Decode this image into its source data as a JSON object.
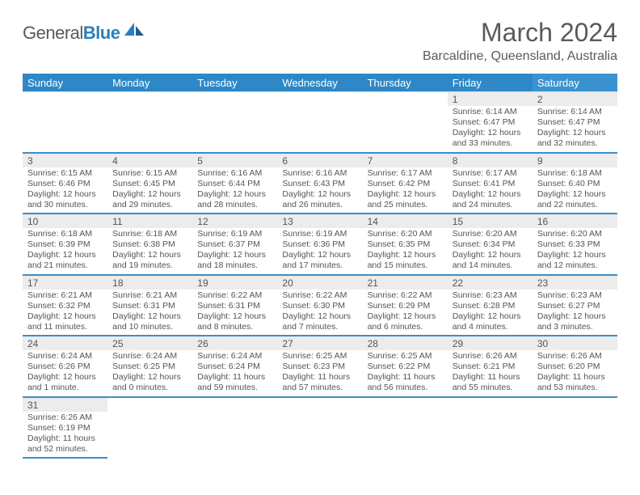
{
  "logo": {
    "first": "General",
    "second": "Blue"
  },
  "title": "March 2024",
  "location": "Barcaldine, Queensland, Australia",
  "colors": {
    "header_bg": "#2e88c7",
    "header_bg_sat": "#3a92d0",
    "divider": "#3a8fc9",
    "daynum_bg": "#ececec",
    "text": "#555555"
  },
  "day_labels": [
    "Sunday",
    "Monday",
    "Tuesday",
    "Wednesday",
    "Thursday",
    "Friday",
    "Saturday"
  ],
  "weeks": [
    [
      null,
      null,
      null,
      null,
      null,
      {
        "n": "1",
        "sr": "6:14 AM",
        "ss": "6:47 PM",
        "dl": "12 hours and 33 minutes."
      },
      {
        "n": "2",
        "sr": "6:14 AM",
        "ss": "6:47 PM",
        "dl": "12 hours and 32 minutes."
      }
    ],
    [
      {
        "n": "3",
        "sr": "6:15 AM",
        "ss": "6:46 PM",
        "dl": "12 hours and 30 minutes."
      },
      {
        "n": "4",
        "sr": "6:15 AM",
        "ss": "6:45 PM",
        "dl": "12 hours and 29 minutes."
      },
      {
        "n": "5",
        "sr": "6:16 AM",
        "ss": "6:44 PM",
        "dl": "12 hours and 28 minutes."
      },
      {
        "n": "6",
        "sr": "6:16 AM",
        "ss": "6:43 PM",
        "dl": "12 hours and 26 minutes."
      },
      {
        "n": "7",
        "sr": "6:17 AM",
        "ss": "6:42 PM",
        "dl": "12 hours and 25 minutes."
      },
      {
        "n": "8",
        "sr": "6:17 AM",
        "ss": "6:41 PM",
        "dl": "12 hours and 24 minutes."
      },
      {
        "n": "9",
        "sr": "6:18 AM",
        "ss": "6:40 PM",
        "dl": "12 hours and 22 minutes."
      }
    ],
    [
      {
        "n": "10",
        "sr": "6:18 AM",
        "ss": "6:39 PM",
        "dl": "12 hours and 21 minutes."
      },
      {
        "n": "11",
        "sr": "6:18 AM",
        "ss": "6:38 PM",
        "dl": "12 hours and 19 minutes."
      },
      {
        "n": "12",
        "sr": "6:19 AM",
        "ss": "6:37 PM",
        "dl": "12 hours and 18 minutes."
      },
      {
        "n": "13",
        "sr": "6:19 AM",
        "ss": "6:36 PM",
        "dl": "12 hours and 17 minutes."
      },
      {
        "n": "14",
        "sr": "6:20 AM",
        "ss": "6:35 PM",
        "dl": "12 hours and 15 minutes."
      },
      {
        "n": "15",
        "sr": "6:20 AM",
        "ss": "6:34 PM",
        "dl": "12 hours and 14 minutes."
      },
      {
        "n": "16",
        "sr": "6:20 AM",
        "ss": "6:33 PM",
        "dl": "12 hours and 12 minutes."
      }
    ],
    [
      {
        "n": "17",
        "sr": "6:21 AM",
        "ss": "6:32 PM",
        "dl": "12 hours and 11 minutes."
      },
      {
        "n": "18",
        "sr": "6:21 AM",
        "ss": "6:31 PM",
        "dl": "12 hours and 10 minutes."
      },
      {
        "n": "19",
        "sr": "6:22 AM",
        "ss": "6:31 PM",
        "dl": "12 hours and 8 minutes."
      },
      {
        "n": "20",
        "sr": "6:22 AM",
        "ss": "6:30 PM",
        "dl": "12 hours and 7 minutes."
      },
      {
        "n": "21",
        "sr": "6:22 AM",
        "ss": "6:29 PM",
        "dl": "12 hours and 6 minutes."
      },
      {
        "n": "22",
        "sr": "6:23 AM",
        "ss": "6:28 PM",
        "dl": "12 hours and 4 minutes."
      },
      {
        "n": "23",
        "sr": "6:23 AM",
        "ss": "6:27 PM",
        "dl": "12 hours and 3 minutes."
      }
    ],
    [
      {
        "n": "24",
        "sr": "6:24 AM",
        "ss": "6:26 PM",
        "dl": "12 hours and 1 minute."
      },
      {
        "n": "25",
        "sr": "6:24 AM",
        "ss": "6:25 PM",
        "dl": "12 hours and 0 minutes."
      },
      {
        "n": "26",
        "sr": "6:24 AM",
        "ss": "6:24 PM",
        "dl": "11 hours and 59 minutes."
      },
      {
        "n": "27",
        "sr": "6:25 AM",
        "ss": "6:23 PM",
        "dl": "11 hours and 57 minutes."
      },
      {
        "n": "28",
        "sr": "6:25 AM",
        "ss": "6:22 PM",
        "dl": "11 hours and 56 minutes."
      },
      {
        "n": "29",
        "sr": "6:26 AM",
        "ss": "6:21 PM",
        "dl": "11 hours and 55 minutes."
      },
      {
        "n": "30",
        "sr": "6:26 AM",
        "ss": "6:20 PM",
        "dl": "11 hours and 53 minutes."
      }
    ],
    [
      {
        "n": "31",
        "sr": "6:26 AM",
        "ss": "6:19 PM",
        "dl": "11 hours and 52 minutes."
      },
      null,
      null,
      null,
      null,
      null,
      null
    ]
  ],
  "labels": {
    "sunrise": "Sunrise:",
    "sunset": "Sunset:",
    "daylight": "Daylight:"
  }
}
